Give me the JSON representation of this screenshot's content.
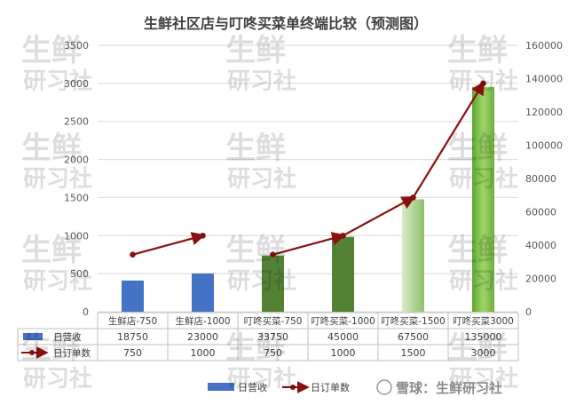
{
  "chart_data": {
    "type": "bar",
    "title": "生鲜社区店与叮咚买菜单终端比较（预测图）",
    "categories": [
      "生鲜店-750",
      "生鲜店-1000",
      "叮咚买菜-750",
      "叮咚买菜-1000",
      "叮咚买菜-1500",
      "叮咚买菜3000"
    ],
    "series": [
      {
        "name": "日营收",
        "type": "bar",
        "axis": "right",
        "values": [
          18750,
          23000,
          33750,
          45000,
          67500,
          135000
        ]
      },
      {
        "name": "日订单数",
        "type": "line",
        "axis": "left",
        "values": [
          750,
          1000,
          750,
          1000,
          1500,
          3000
        ]
      }
    ],
    "y_left": {
      "min": 0,
      "max": 3500,
      "ticks": [
        0,
        500,
        1000,
        1500,
        2000,
        2500,
        3000,
        3500
      ]
    },
    "y_right": {
      "min": 0,
      "max": 160000,
      "ticks": [
        0,
        20000,
        40000,
        60000,
        80000,
        100000,
        120000,
        140000,
        160000
      ]
    },
    "grid": true,
    "legend": "bottom",
    "data_table": true,
    "colors": {
      "bar_blue": "#4472c4",
      "bar_green_dark": "#548235",
      "bar_green_light": "#a9d18e",
      "bar_green_bright": "#70ad47",
      "line": "#8b0f0f"
    }
  },
  "watermark": {
    "lines": [
      "生鲜",
      "研习社"
    ],
    "footer": "雪球：生鲜研习社"
  }
}
